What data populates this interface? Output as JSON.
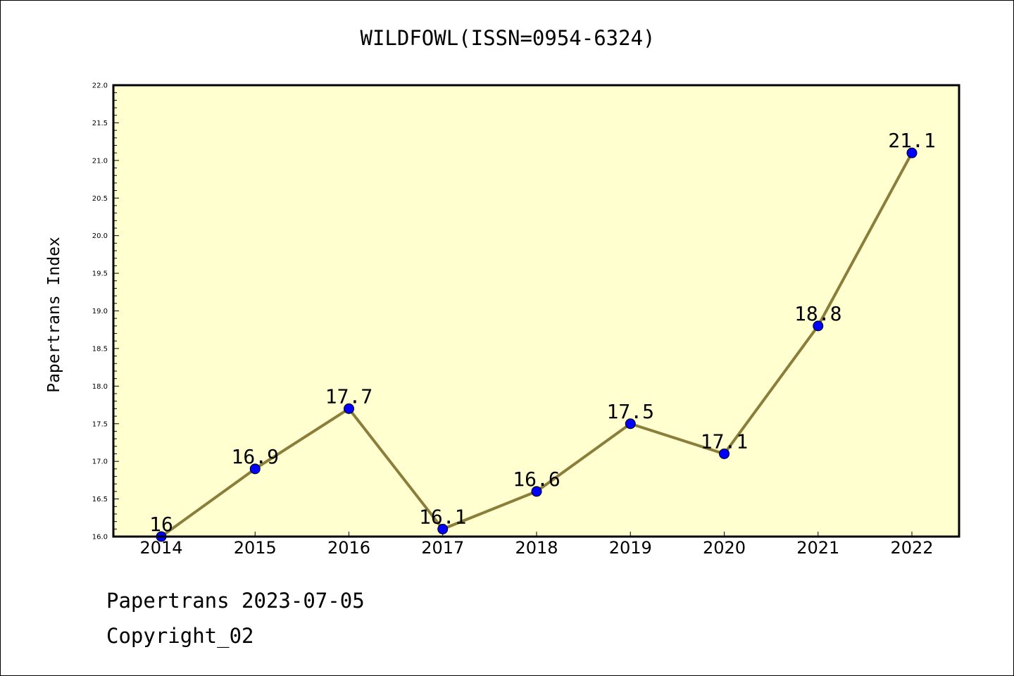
{
  "chart_data": {
    "type": "line",
    "title": "WILDFOWL(ISSN=0954-6324)",
    "ylabel": "Papertrans Index",
    "xlabel": "",
    "x": [
      "2014",
      "2015",
      "2016",
      "2017",
      "2018",
      "2019",
      "2020",
      "2021",
      "2022"
    ],
    "series": [
      {
        "values": [
          16,
          16.9,
          17.7,
          16.1,
          16.6,
          17.5,
          17.1,
          18.8,
          21.1
        ],
        "data_labels": [
          "16",
          "16.9",
          "17.7",
          "16.1",
          "16.6",
          "17.5",
          "17.1",
          "18.8",
          "21.1"
        ],
        "line_color": "#8B7D3A",
        "marker_color": "#0000FF"
      }
    ],
    "ylim": [
      16.0,
      22.0
    ],
    "yticks": [
      "16.0",
      "16.5",
      "17.0",
      "17.5",
      "18.0",
      "18.5",
      "19.0",
      "19.5",
      "20.0",
      "20.5",
      "21.0",
      "21.5",
      "22.0"
    ],
    "plot_background": "#FFFFD0",
    "grid": false,
    "legend": "none"
  },
  "footer": {
    "date_line": "Papertrans 2023-07-05",
    "copyright_line": "Copyright_02"
  }
}
